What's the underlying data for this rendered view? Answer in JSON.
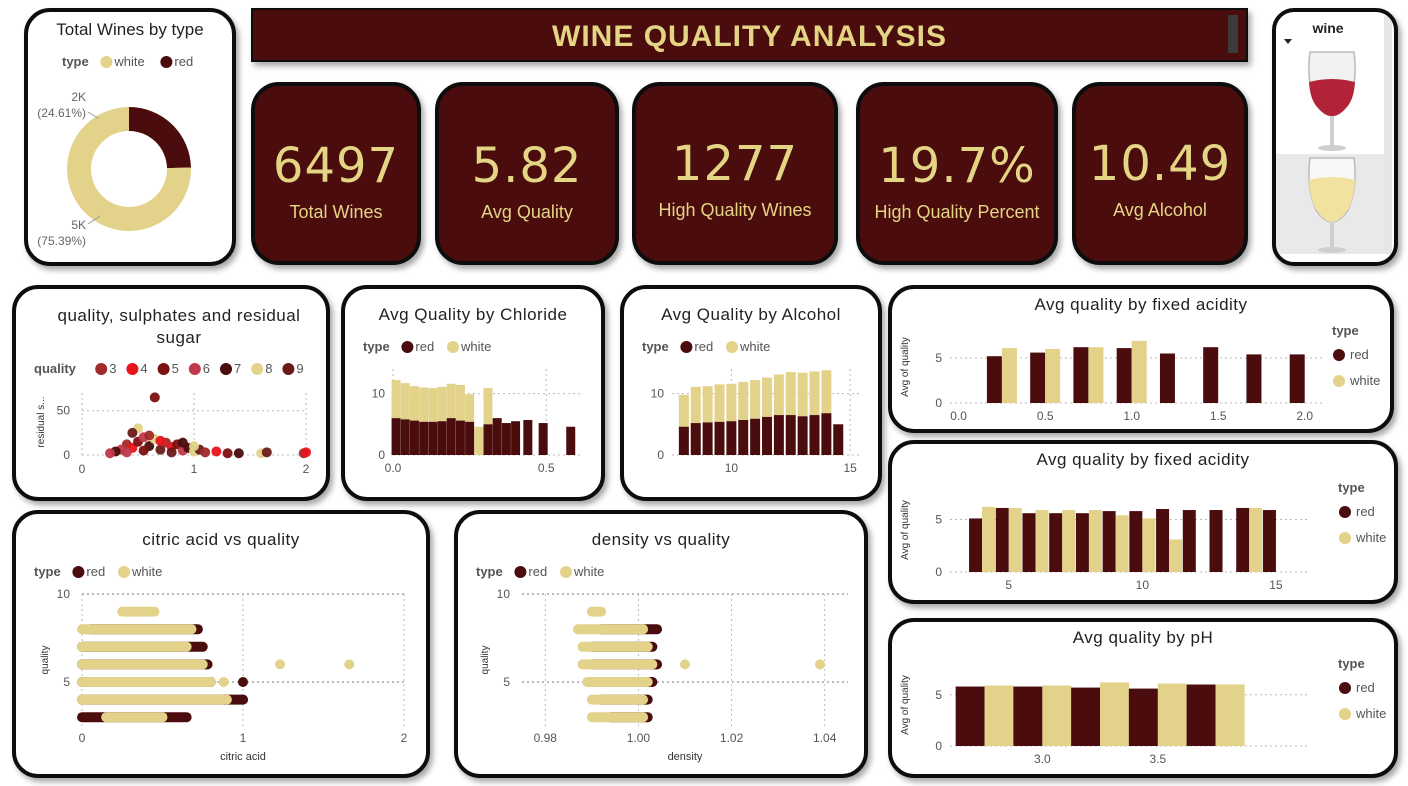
{
  "colors": {
    "red": "#4a0c0c",
    "white": "#e2d28a",
    "grid": "#bbbbbb",
    "text": "#555555"
  },
  "banner": {
    "title": "WINE QUALITY ANALYSIS"
  },
  "kpis": [
    {
      "value": "6497",
      "label": "Total Wines"
    },
    {
      "value": "5.82",
      "label": "Avg Quality"
    },
    {
      "value": "1277",
      "label": "High Quality Wines"
    },
    {
      "value": "19.7%",
      "label": "High Quality Percent"
    },
    {
      "value": "10.49",
      "label": "Avg Alcohol"
    }
  ],
  "slicer": {
    "title": "wine",
    "items": [
      "red-wine-glass",
      "white-wine-glass"
    ]
  },
  "chart_data": [
    {
      "id": "donut",
      "type": "pie",
      "title": "Total Wines by type",
      "legend_title": "type",
      "legend": [
        "white",
        "red"
      ],
      "slices": [
        {
          "name": "red",
          "value": 1599,
          "label": "2K",
          "pct": "(24.61%)"
        },
        {
          "name": "white",
          "value": 4898,
          "label": "5K",
          "pct": "(75.39%)"
        }
      ]
    },
    {
      "id": "sulph",
      "type": "scatter",
      "title": "quality, sulphates and residual sugar",
      "legend_title": "quality",
      "legend": [
        "3",
        "4",
        "5",
        "6",
        "7",
        "8",
        "9"
      ],
      "legend_colors": [
        "#a32a2a",
        "#e8141b",
        "#7d1010",
        "#c0394a",
        "#4a0c0c",
        "#e2d28a",
        "#6b1a1a"
      ],
      "ylabel": "residual s...",
      "xlim": [
        0,
        2
      ],
      "ylim": [
        0,
        70
      ],
      "xticks": [
        "0",
        "1",
        "2"
      ],
      "yticks": [
        "0",
        "50"
      ],
      "points": [
        [
          0.4,
          12
        ],
        [
          0.45,
          8
        ],
        [
          0.5,
          15
        ],
        [
          0.55,
          20
        ],
        [
          0.6,
          10
        ],
        [
          0.65,
          18
        ],
        [
          0.7,
          6
        ],
        [
          0.75,
          14
        ],
        [
          0.8,
          9
        ],
        [
          0.85,
          12
        ],
        [
          0.9,
          5
        ],
        [
          0.95,
          8
        ],
        [
          1.0,
          4
        ],
        [
          1.05,
          6
        ],
        [
          1.1,
          3
        ],
        [
          1.2,
          4
        ],
        [
          1.3,
          2
        ],
        [
          0.35,
          6
        ],
        [
          0.3,
          4
        ],
        [
          0.5,
          30
        ],
        [
          0.45,
          25
        ],
        [
          0.6,
          22
        ],
        [
          0.7,
          16
        ],
        [
          0.55,
          5
        ],
        [
          0.4,
          3
        ],
        [
          1.4,
          2
        ],
        [
          1.6,
          2
        ],
        [
          1.65,
          3
        ],
        [
          1.98,
          2
        ],
        [
          2.0,
          3
        ],
        [
          0.65,
          65
        ],
        [
          0.25,
          2
        ],
        [
          0.9,
          14
        ],
        [
          1.0,
          10
        ],
        [
          0.8,
          3
        ]
      ]
    },
    {
      "id": "chloride",
      "type": "bar",
      "title": "Avg Quality by Chloride",
      "legend_title": "type",
      "legend": [
        "red",
        "white"
      ],
      "xlim": [
        0,
        0.62
      ],
      "ylim": [
        0,
        14
      ],
      "xticks": [
        {
          "v": 0,
          "t": "0.0"
        },
        {
          "v": 0.5,
          "t": "0.5"
        }
      ],
      "yticks": [
        {
          "v": 0,
          "t": "0"
        },
        {
          "v": 10,
          "t": "10"
        }
      ],
      "series": [
        {
          "name": "red",
          "x": [
            0.01,
            0.04,
            0.07,
            0.1,
            0.13,
            0.16,
            0.19,
            0.22,
            0.25,
            0.28,
            0.31,
            0.34,
            0.37,
            0.4,
            0.44,
            0.49,
            0.58
          ],
          "values": [
            6,
            5.8,
            5.6,
            5.4,
            5.4,
            5.5,
            6,
            5.6,
            5.4,
            0,
            5,
            6,
            5.2,
            5.5,
            5.7,
            5.2,
            4.6
          ]
        },
        {
          "name": "white",
          "x": [
            0.01,
            0.04,
            0.07,
            0.1,
            0.13,
            0.16,
            0.19,
            0.22,
            0.25,
            0.28,
            0.31
          ],
          "values": [
            6.2,
            5.9,
            5.6,
            5.6,
            5.5,
            5.6,
            5.6,
            5.8,
            4.5,
            4.6,
            5.9
          ]
        }
      ]
    },
    {
      "id": "alcohol",
      "type": "bar",
      "title": "Avg Quality by Alcohol",
      "legend_title": "type",
      "legend": [
        "red",
        "white"
      ],
      "xlim": [
        7.5,
        15.5
      ],
      "ylim": [
        0,
        14
      ],
      "xticks": [
        {
          "v": 10,
          "t": "10"
        },
        {
          "v": 15,
          "t": "15"
        }
      ],
      "yticks": [
        {
          "v": 0,
          "t": "0"
        },
        {
          "v": 10,
          "t": "10"
        }
      ],
      "series": [
        {
          "name": "red",
          "x": [
            8,
            8.5,
            9,
            9.5,
            10,
            10.5,
            11,
            11.5,
            12,
            12.5,
            13,
            13.5,
            14,
            14.5
          ],
          "values": [
            4.6,
            5.2,
            5.3,
            5.4,
            5.5,
            5.7,
            5.9,
            6.2,
            6.5,
            6.5,
            6.3,
            6.5,
            6.8,
            5
          ],
          "white_x": null
        },
        {
          "name": "white",
          "x": [
            8,
            8.5,
            9,
            9.5,
            10,
            10.5,
            11,
            11.5,
            12,
            12.5,
            13,
            13.5,
            14
          ],
          "values": [
            5.2,
            5.9,
            5.9,
            6.1,
            6.1,
            6.2,
            6.3,
            6.4,
            6.6,
            7,
            7.1,
            7.1,
            7.0
          ]
        }
      ]
    },
    {
      "id": "fixed1",
      "type": "bar",
      "title": "Avg quality by fixed acidity",
      "legend_title": "type",
      "legend": [
        "red",
        "white"
      ],
      "ylabel": "Avg of quality",
      "xlim": [
        -0.05,
        2.1
      ],
      "ylim": [
        0,
        8
      ],
      "xticks": [
        {
          "v": 0,
          "t": "0.0"
        },
        {
          "v": 0.5,
          "t": "0.5"
        },
        {
          "v": 1.0,
          "t": "1.0"
        },
        {
          "v": 1.5,
          "t": "1.5"
        },
        {
          "v": 2.0,
          "t": "2.0"
        }
      ],
      "yticks": [
        {
          "v": 0,
          "t": "0"
        },
        {
          "v": 5,
          "t": "5"
        }
      ],
      "groups": [
        {
          "x": 0.25,
          "red": 5.2,
          "white": 6.1
        },
        {
          "x": 0.5,
          "red": 5.6,
          "white": 6.0
        },
        {
          "x": 0.75,
          "red": 6.2,
          "white": 6.2
        },
        {
          "x": 1.0,
          "red": 6.1,
          "white": 6.9
        },
        {
          "x": 1.25,
          "red": 5.5,
          "white": null
        },
        {
          "x": 1.5,
          "red": 6.2,
          "white": null
        },
        {
          "x": 1.75,
          "red": 5.4,
          "white": null
        },
        {
          "x": 2.0,
          "red": 5.4,
          "white": null
        }
      ]
    },
    {
      "id": "fixed2",
      "type": "bar",
      "title": "Avg quality by fixed acidity",
      "legend_title": "type",
      "legend": [
        "red",
        "white"
      ],
      "ylabel": "Avg of quality",
      "xlim": [
        2.8,
        16.2
      ],
      "ylim": [
        0,
        8
      ],
      "xticks": [
        {
          "v": 5,
          "t": "5"
        },
        {
          "v": 10,
          "t": "10"
        },
        {
          "v": 15,
          "t": "15"
        }
      ],
      "yticks": [
        {
          "v": 0,
          "t": "0"
        },
        {
          "v": 5,
          "t": "5"
        }
      ],
      "groups": [
        {
          "x": 4,
          "red": 5.1,
          "white": 6.2
        },
        {
          "x": 5,
          "red": 6.1,
          "white": 6.1
        },
        {
          "x": 6,
          "red": 5.6,
          "white": 5.9
        },
        {
          "x": 7,
          "red": 5.6,
          "white": 5.9
        },
        {
          "x": 8,
          "red": 5.6,
          "white": 5.9
        },
        {
          "x": 9,
          "red": 5.8,
          "white": 5.4
        },
        {
          "x": 10,
          "red": 5.8,
          "white": 5.1
        },
        {
          "x": 11,
          "red": 6.0,
          "white": 3.1
        },
        {
          "x": 12,
          "red": 5.9,
          "white": null
        },
        {
          "x": 13,
          "red": 5.9,
          "white": null
        },
        {
          "x": 14,
          "red": 6.1,
          "white": 6.1
        },
        {
          "x": 15,
          "red": 5.9,
          "white": null
        }
      ]
    },
    {
      "id": "ph",
      "type": "bar",
      "title": "Avg quality by pH",
      "legend_title": "type",
      "legend": [
        "red",
        "white"
      ],
      "ylabel": "Avg of quality",
      "xlim": [
        2.6,
        4.15
      ],
      "ylim": [
        0,
        8
      ],
      "xticks": [
        {
          "v": 3.0,
          "t": "3.0"
        },
        {
          "v": 3.5,
          "t": "3.5"
        }
      ],
      "yticks": [
        {
          "v": 0,
          "t": "0"
        },
        {
          "v": 5,
          "t": "5"
        }
      ],
      "groups": [
        {
          "x": 2.75,
          "red": 5.8,
          "white": 5.9
        },
        {
          "x": 3.0,
          "red": 5.8,
          "white": 5.9
        },
        {
          "x": 3.25,
          "red": 5.7,
          "white": 6.2
        },
        {
          "x": 3.5,
          "red": 5.6,
          "white": 6.1
        },
        {
          "x": 3.75,
          "red": 6.0,
          "white": 6.0
        }
      ]
    },
    {
      "id": "citric",
      "type": "scatter",
      "title": "citric acid vs quality",
      "legend_title": "type",
      "legend": [
        "red",
        "white"
      ],
      "xlabel": "citric acid",
      "ylabel": "quality",
      "xlim": [
        0,
        2
      ],
      "ylim": [
        2.5,
        10
      ],
      "xticks": [
        {
          "v": 0,
          "t": "0"
        },
        {
          "v": 1,
          "t": "1"
        },
        {
          "v": 2,
          "t": "2"
        }
      ],
      "yticks": [
        {
          "v": 5,
          "t": "5"
        },
        {
          "v": 10,
          "t": "10"
        }
      ],
      "rows": [
        {
          "y": 3,
          "red": [
            0,
            0.65
          ],
          "white": [
            0.15,
            0.5
          ]
        },
        {
          "y": 4,
          "red": [
            0,
            1.0
          ],
          "white": [
            0,
            0.88
          ]
        },
        {
          "y": 5,
          "red": [
            0,
            0.8
          ],
          "white": [
            0,
            0.8
          ]
        },
        {
          "y": 6,
          "red": [
            0,
            0.78
          ],
          "white": [
            0,
            0.75
          ]
        },
        {
          "y": 7,
          "red": [
            0,
            0.75
          ],
          "white": [
            0,
            0.65
          ]
        },
        {
          "y": 8,
          "red": [
            0.05,
            0.72
          ],
          "white": [
            0,
            0.68
          ]
        },
        {
          "y": 9,
          "red": null,
          "white": [
            0.25,
            0.45
          ]
        }
      ],
      "outliers": [
        {
          "x": 0.88,
          "y": 5,
          "t": "white"
        },
        {
          "x": 1.0,
          "y": 5,
          "t": "red"
        },
        {
          "x": 1.23,
          "y": 6,
          "t": "white"
        },
        {
          "x": 1.66,
          "y": 6,
          "t": "white"
        },
        {
          "x": 1.0,
          "y": 4,
          "t": "red"
        },
        {
          "x": 0.9,
          "y": 4,
          "t": "white"
        }
      ]
    },
    {
      "id": "density",
      "type": "scatter",
      "title": "density vs quality",
      "legend_title": "type",
      "legend": [
        "red",
        "white"
      ],
      "xlabel": "density",
      "ylabel": "quality",
      "xlim": [
        0.975,
        1.045
      ],
      "ylim": [
        2.5,
        10
      ],
      "xticks": [
        {
          "v": 0.98,
          "t": "0.98"
        },
        {
          "v": 1.0,
          "t": "1.00"
        },
        {
          "v": 1.02,
          "t": "1.02"
        },
        {
          "v": 1.04,
          "t": "1.04"
        }
      ],
      "yticks": [
        {
          "v": 5,
          "t": "5"
        },
        {
          "v": 10,
          "t": "10"
        }
      ],
      "rows": [
        {
          "y": 3,
          "red": [
            0.994,
            1.002
          ],
          "white": [
            0.99,
            1.001
          ]
        },
        {
          "y": 4,
          "red": [
            0.992,
            1.002
          ],
          "white": [
            0.99,
            1.001
          ]
        },
        {
          "y": 5,
          "red": [
            0.99,
            1.003
          ],
          "white": [
            0.989,
            1.002
          ]
        },
        {
          "y": 6,
          "red": [
            0.99,
            1.004
          ],
          "white": [
            0.988,
            1.003
          ]
        },
        {
          "y": 7,
          "red": [
            0.99,
            1.003
          ],
          "white": [
            0.988,
            1.002
          ]
        },
        {
          "y": 8,
          "red": [
            0.992,
            1.004
          ],
          "white": [
            0.987,
            1.001
          ]
        },
        {
          "y": 9,
          "red": null,
          "white": [
            0.99,
            0.992
          ]
        }
      ],
      "outliers": [
        {
          "x": 1.01,
          "y": 6,
          "t": "white"
        },
        {
          "x": 1.039,
          "y": 6,
          "t": "white"
        }
      ]
    }
  ]
}
